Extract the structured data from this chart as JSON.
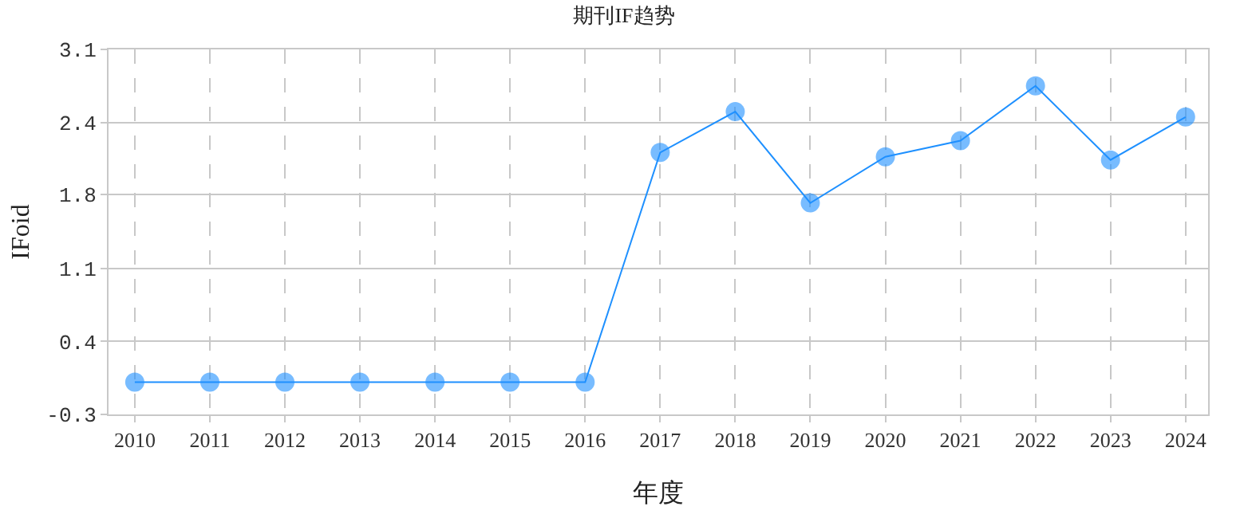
{
  "chart_data": {
    "type": "line",
    "title": "期刊IF趋势",
    "xlabel": "年度",
    "ylabel": "IFoid",
    "categories": [
      "2010",
      "2011",
      "2012",
      "2013",
      "2014",
      "2015",
      "2016",
      "2017",
      "2018",
      "2019",
      "2020",
      "2021",
      "2022",
      "2023",
      "2024"
    ],
    "series": [
      {
        "color": "#1e90ff",
        "values": [
          0,
          0,
          0,
          0,
          0,
          0,
          0,
          2.14,
          2.52,
          1.67,
          2.1,
          2.25,
          2.76,
          2.07,
          2.47
        ]
      }
    ],
    "ylim": [
      -0.3,
      3.1
    ],
    "yticks": [
      -0.3,
      {
        "value": 0.38,
        "label": "0.4"
      },
      {
        "value": 1.06,
        "label": "1.1"
      },
      {
        "value": 1.75,
        "label": "1.8"
      },
      {
        "value": 2.42,
        "label": "2.4"
      },
      3.1
    ],
    "grid": true,
    "marker": "circle",
    "line_style": "solid"
  }
}
